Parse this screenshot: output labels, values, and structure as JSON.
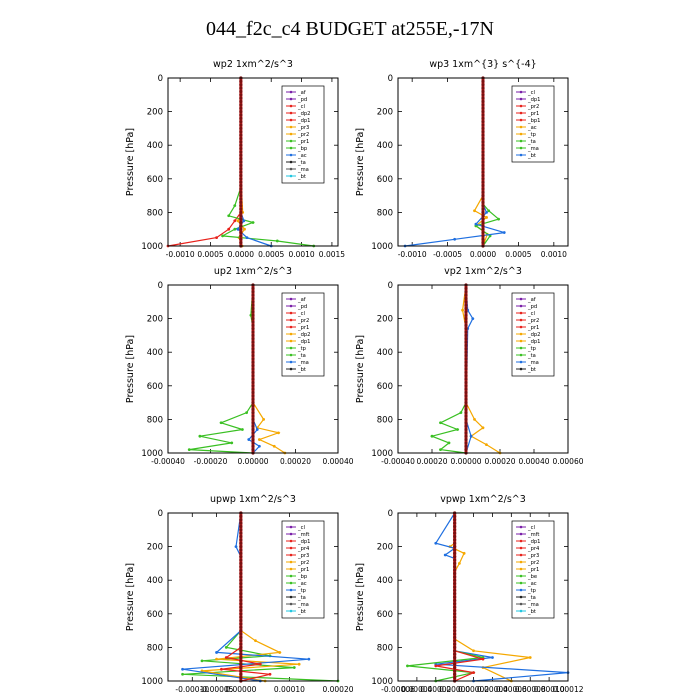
{
  "figure_title": "044_f2c_c4  BUDGET at255E,-17N",
  "chart_data": [
    {
      "type": "line",
      "title": "wp2   1xm^2/s^3",
      "ylabel": "Pressure [hPa]",
      "ylim": [
        1000,
        0
      ],
      "yticks": [
        0,
        200,
        400,
        600,
        800,
        1000
      ],
      "xlim": [
        -0.0012,
        0.0016
      ],
      "xticks": [
        -0.001,
        -0.0005,
        0.0,
        0.0005,
        0.001,
        0.0015
      ],
      "xtick_labels": [
        "-0.0010",
        "0.0005",
        "0.0000",
        "0.0005",
        "0.0010",
        "0.0015"
      ],
      "legend": [
        "_af",
        "_pd",
        "_cl",
        "_dp2",
        "_dp1",
        "_pr3",
        "_pr2",
        "_pr1",
        "_bp",
        "_ac",
        "_ta",
        "_ma",
        "_bt"
      ],
      "series": [
        {
          "name": "_cl",
          "color": "#e8211b",
          "x": [
            0,
            0,
            0,
            -0.0001,
            -0.0002,
            -0.0004,
            -0.0012
          ],
          "y": [
            0,
            500,
            800,
            850,
            900,
            950,
            1000
          ]
        },
        {
          "name": "_pr2",
          "color": "#f5a800",
          "x": [
            0,
            0,
            3e-05,
            -5e-05,
            6e-05,
            -3e-05,
            2e-05
          ],
          "y": [
            0,
            600,
            800,
            850,
            900,
            950,
            1000
          ]
        },
        {
          "name": "_bp",
          "color": "#3ac023",
          "x": [
            0,
            0,
            -0.0001,
            -0.0002,
            0.0002,
            -0.0001,
            -0.0003,
            0.0006,
            0.0012
          ],
          "y": [
            0,
            650,
            760,
            820,
            860,
            900,
            940,
            970,
            1000
          ]
        },
        {
          "name": "_ta",
          "color": "#1f6fe0",
          "x": [
            0,
            0,
            5e-05,
            -5e-05,
            0.0001,
            0.0005
          ],
          "y": [
            0,
            800,
            850,
            900,
            950,
            1000
          ]
        },
        {
          "name": "_pd",
          "color": "#7a1fa8",
          "x": [
            0,
            0,
            0,
            0
          ],
          "y": [
            0,
            500,
            900,
            1000
          ]
        }
      ]
    },
    {
      "type": "line",
      "title": "wp3   1xm^{3} s^{-4}",
      "ylabel": "Pressure [hPa]",
      "ylim": [
        1000,
        0
      ],
      "yticks": [
        0,
        200,
        400,
        600,
        800,
        1000
      ],
      "xlim": [
        -0.0012,
        0.0012
      ],
      "xticks": [
        -0.001,
        -0.0005,
        0.0,
        0.0005,
        0.001
      ],
      "xtick_labels": [
        "-0.0010",
        "-0.0005",
        "0.0000",
        "0.0005",
        "0.0010"
      ],
      "legend": [
        "_cl",
        "_dp1",
        "_pr2",
        "_pr1",
        "_bp1",
        "_ac",
        "_tp",
        "_ta",
        "_ma",
        "_bt"
      ],
      "series": [
        {
          "name": "_pr2",
          "color": "#f5a800",
          "x": [
            0,
            0,
            -0.00012,
            5e-05,
            -0.0001,
            6e-05,
            0
          ],
          "y": [
            0,
            700,
            790,
            830,
            880,
            930,
            1000
          ]
        },
        {
          "name": "_ac",
          "color": "#3ac023",
          "x": [
            0,
            0,
            8e-05,
            0.00022,
            -0.0001,
            0.0001,
            0
          ],
          "y": [
            0,
            750,
            790,
            840,
            880,
            940,
            1000
          ]
        },
        {
          "name": "_tp",
          "color": "#1f6fe0",
          "x": [
            0,
            0,
            5e-05,
            -0.0001,
            0.0003,
            -0.0004,
            -0.0011
          ],
          "y": [
            0,
            750,
            800,
            870,
            920,
            960,
            1000
          ]
        },
        {
          "name": "_cl",
          "color": "#e8211b",
          "x": [
            0,
            0,
            0,
            0
          ],
          "y": [
            0,
            500,
            900,
            1000
          ]
        }
      ]
    },
    {
      "type": "line",
      "title": "up2   1xm^2/s^3",
      "ylabel": "Pressure [hPa]",
      "ylim": [
        1000,
        0
      ],
      "yticks": [
        0,
        200,
        400,
        600,
        800,
        1000
      ],
      "xlim": [
        -0.0004,
        0.0004
      ],
      "xticks": [
        -0.0004,
        -0.0002,
        0.0,
        0.0002,
        0.0004
      ],
      "xtick_labels": [
        "-0.00040",
        "-0.00020",
        "0.00000",
        "0.00020",
        "0.00040"
      ],
      "legend": [
        "_af",
        "_pd",
        "_cl",
        "_pr2",
        "_pr1",
        "_dp2",
        "_dp1",
        "_tp",
        "_ta",
        "_ma",
        "_bt"
      ],
      "series": [
        {
          "name": "_dp2",
          "color": "#3ac023",
          "x": [
            0,
            -1e-05,
            0,
            0,
            -3e-05,
            -0.00015,
            -5e-05,
            -0.00025,
            -0.0001,
            -0.0003,
            0
          ],
          "y": [
            0,
            180,
            260,
            700,
            760,
            820,
            860,
            900,
            940,
            980,
            1000
          ]
        },
        {
          "name": "_pr2",
          "color": "#f5a800",
          "x": [
            0,
            0,
            5e-05,
            2e-05,
            0.00012,
            3e-05,
            0.0001,
            0.00015
          ],
          "y": [
            0,
            700,
            800,
            850,
            880,
            920,
            960,
            1000
          ]
        },
        {
          "name": "_tp",
          "color": "#1f6fe0",
          "x": [
            0,
            0,
            2e-05,
            -2e-05,
            3e-05,
            0
          ],
          "y": [
            0,
            800,
            860,
            920,
            960,
            1000
          ]
        },
        {
          "name": "_cl",
          "color": "#e8211b",
          "x": [
            0,
            0,
            0,
            0
          ],
          "y": [
            0,
            500,
            900,
            1000
          ]
        }
      ]
    },
    {
      "type": "line",
      "title": "vp2   1xm^2/s^3",
      "ylabel": "Pressure [hPa]",
      "ylim": [
        1000,
        0
      ],
      "yticks": [
        0,
        200,
        400,
        600,
        800,
        1000
      ],
      "xlim": [
        -0.0004,
        0.0006
      ],
      "xticks": [
        -0.0004,
        -0.0002,
        0.0,
        0.0002,
        0.0004,
        0.0006
      ],
      "xtick_labels": [
        "-0.00040",
        "0.00020",
        "0.00000",
        "0.00020",
        "0.00040",
        "0.00060"
      ],
      "legend": [
        "_af",
        "_pd",
        "_cl",
        "_pr2",
        "_pr1",
        "_dp2",
        "_dp1",
        "_tp",
        "_ta",
        "_ma",
        "_bt"
      ],
      "series": [
        {
          "name": "_dp2",
          "color": "#3ac023",
          "x": [
            0,
            0,
            -3e-05,
            -0.00015,
            -5e-05,
            -0.0002,
            -0.0001,
            -0.00015,
            0
          ],
          "y": [
            0,
            700,
            760,
            820,
            860,
            900,
            940,
            980,
            1000
          ]
        },
        {
          "name": "_pr2",
          "color": "#f5a800",
          "x": [
            0,
            -2e-05,
            0,
            0,
            5e-05,
            0.0001,
            3e-05,
            0.00012,
            0.0002
          ],
          "y": [
            0,
            150,
            260,
            700,
            800,
            850,
            900,
            950,
            1000
          ]
        },
        {
          "name": "_tp",
          "color": "#1f6fe0",
          "x": [
            0,
            1e-05,
            4e-05,
            1e-05,
            0,
            3e-05,
            0
          ],
          "y": [
            0,
            150,
            200,
            260,
            800,
            900,
            1000
          ]
        },
        {
          "name": "_cl",
          "color": "#e8211b",
          "x": [
            0,
            0,
            0,
            0
          ],
          "y": [
            0,
            500,
            900,
            1000
          ]
        }
      ]
    },
    {
      "type": "line",
      "title": "upwp   1xm^2/s^3",
      "ylabel": "Pressure [hPa]",
      "ylim": [
        1000,
        0
      ],
      "yticks": [
        0,
        200,
        400,
        600,
        800,
        1000
      ],
      "xlim": [
        -0.00015,
        0.0002
      ],
      "xticks": [
        -0.0001,
        -5e-05,
        0.0,
        0.0001,
        0.0002
      ],
      "xtick_labels": [
        "-0.00010",
        "-0.00005",
        "0.00000",
        "0.00010",
        "0.00020"
      ],
      "legend": [
        "_cl",
        "_mft",
        "_dp1",
        "_pr4",
        "_pr3",
        "_pr2",
        "_pr1",
        "_bp",
        "_ac",
        "_tp",
        "_ta",
        "_ma",
        "_bt"
      ],
      "series": [
        {
          "name": "_ac",
          "color": "#3ac023",
          "x": [
            0,
            0,
            -3e-05,
            6e-05,
            -8e-05,
            0.00011,
            -0.00012,
            0.0002
          ],
          "y": [
            0,
            700,
            800,
            850,
            880,
            920,
            960,
            1000
          ]
        },
        {
          "name": "_pr2",
          "color": "#f5a800",
          "x": [
            0,
            0,
            3e-05,
            8e-05,
            -5e-05,
            0.00012,
            -8e-05,
            5e-05
          ],
          "y": [
            0,
            700,
            760,
            830,
            870,
            900,
            940,
            1000
          ]
        },
        {
          "name": "_tp",
          "color": "#1f6fe0",
          "x": [
            0,
            -1e-05,
            0,
            0,
            -5e-05,
            0.00014,
            -0.00012,
            4e-05
          ],
          "y": [
            0,
            200,
            260,
            700,
            830,
            870,
            930,
            1000
          ]
        },
        {
          "name": "_cl",
          "color": "#e8211b",
          "x": [
            0,
            0,
            -3e-05,
            4e-05,
            -4e-05,
            6e-05,
            0
          ],
          "y": [
            0,
            800,
            860,
            900,
            930,
            960,
            1000
          ]
        },
        {
          "name": "_mft",
          "color": "#7a1fa8",
          "x": [
            0,
            0,
            0,
            0
          ],
          "y": [
            0,
            500,
            900,
            1000
          ]
        }
      ]
    },
    {
      "type": "line",
      "title": "vpwp   1xm^2/s^3",
      "ylabel": "Pressure [hPa]",
      "ylim": [
        1000,
        0
      ],
      "yticks": [
        0,
        200,
        400,
        600,
        800,
        1000
      ],
      "xlim": [
        -6e-05,
        0.00012
      ],
      "xticks": [
        -6e-05,
        -4e-05,
        -2e-05,
        0.0,
        2e-05,
        4e-05,
        6e-05,
        8e-05,
        0.0001,
        0.00012
      ],
      "xtick_labels": [
        "-0.00006",
        "0.00004",
        "0.00002",
        "0.00000",
        "0.00002",
        "0.00004",
        "0.00006",
        "0.00008",
        "0.00010",
        "0.00012"
      ],
      "legend": [
        "_cl",
        "_mft",
        "_dp1",
        "_pr4",
        "_pr3",
        "_pr2",
        "_pr1",
        "_be",
        "_ac",
        "_tp",
        "_ta",
        "_ma",
        "_bt"
      ],
      "series": [
        {
          "name": "_pr2",
          "color": "#f5a800",
          "x": [
            0,
            0,
            -5e-06,
            1e-05,
            5e-06,
            0,
            0,
            2e-05,
            8e-05,
            3e-05,
            6e-05
          ],
          "y": [
            0,
            180,
            200,
            240,
            300,
            350,
            750,
            820,
            860,
            920,
            1000
          ]
        },
        {
          "name": "_tp",
          "color": "#1f6fe0",
          "x": [
            0,
            -2e-05,
            0,
            -1e-05,
            0,
            0,
            4e-05,
            -2e-05,
            0.00012,
            2e-05
          ],
          "y": [
            0,
            180,
            210,
            250,
            270,
            820,
            860,
            900,
            950,
            1000
          ]
        },
        {
          "name": "_ac",
          "color": "#3ac023",
          "x": [
            0,
            0,
            3e-05,
            -5e-05,
            2e-05,
            -2e-05
          ],
          "y": [
            0,
            820,
            860,
            910,
            950,
            1000
          ]
        },
        {
          "name": "_cl",
          "color": "#e8211b",
          "x": [
            0,
            0,
            3e-05,
            -2e-05,
            2e-05,
            0
          ],
          "y": [
            0,
            820,
            870,
            910,
            950,
            1000
          ]
        },
        {
          "name": "_mft",
          "color": "#7a1fa8",
          "x": [
            0,
            0,
            0,
            0
          ],
          "y": [
            0,
            500,
            900,
            1000
          ]
        }
      ]
    }
  ]
}
